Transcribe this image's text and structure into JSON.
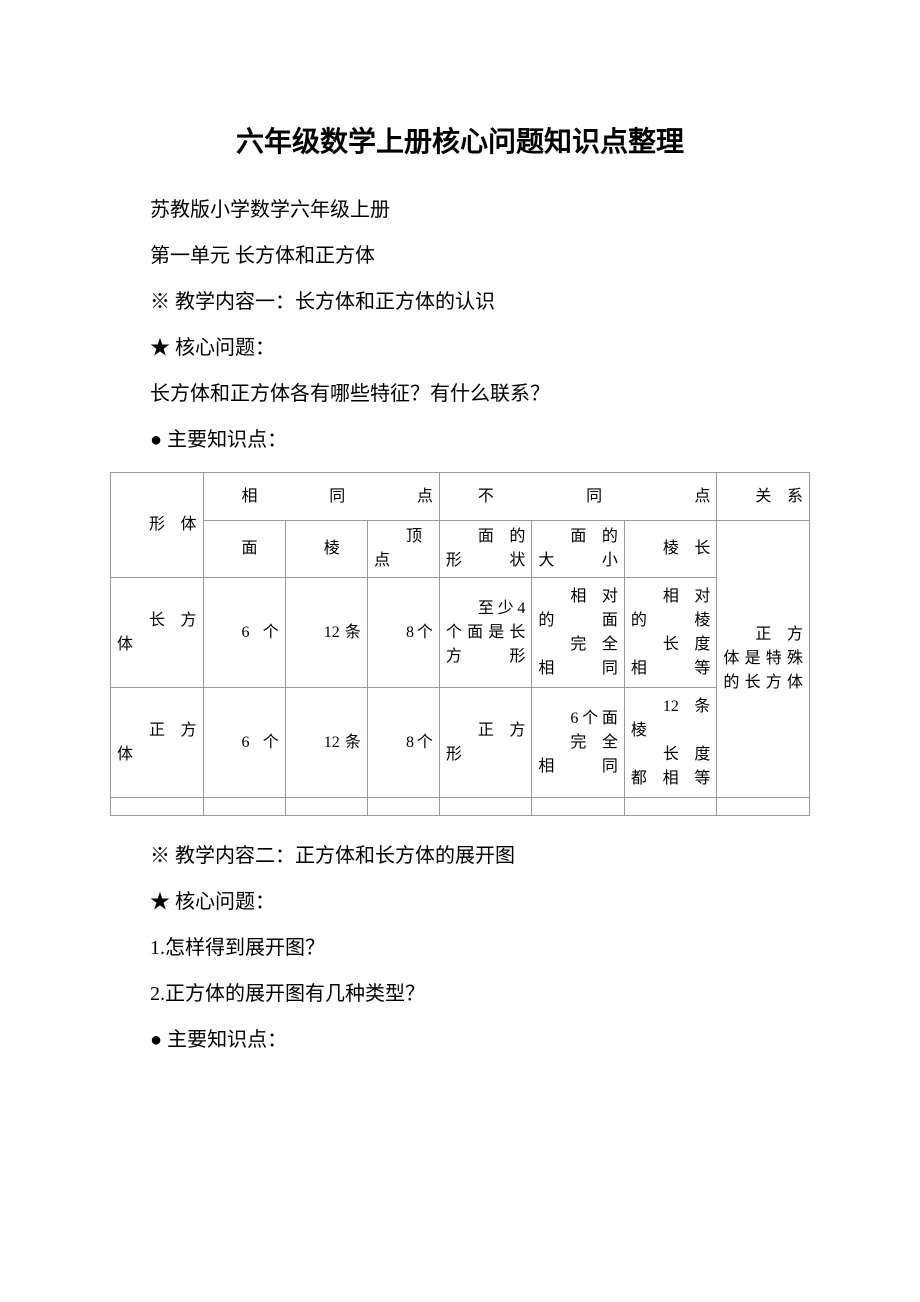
{
  "title": "六年级数学上册核心问题知识点整理",
  "intro1": "苏教版小学数学六年级上册",
  "intro2": "第一单元 长方体和正方体",
  "content1_label": "※ 教学内容一：长方体和正方体的认识",
  "core_label": "★ 核心问题：",
  "core_q1": "长方体和正方体各有哪些特征？有什么联系？",
  "kp_label": "● 主要知识点：",
  "table": {
    "header": {
      "shape": "形体",
      "same": "相同点",
      "diff": "不同点",
      "relation": "关系"
    },
    "subheader": {
      "face": "面",
      "edge": "棱",
      "vertex": "顶点",
      "faceShape": "面的形状",
      "faceSize": "面的大小",
      "edgeLen": "棱长"
    },
    "row1": {
      "shape": "长方体",
      "face": "6个",
      "edge": "12条",
      "vertex": "8个",
      "faceShape": "至少4个面是长方形",
      "faceSize1": "相对的面",
      "faceSize2": "完全相同",
      "edgeLen1": "相对的棱",
      "edgeLen2": "长度相等"
    },
    "row2": {
      "shape": "正方体",
      "face": "6个",
      "edge": "12条",
      "vertex": "8个",
      "faceShape": "正方形",
      "faceSize1": "6个面",
      "faceSize2": "完全相同",
      "edgeLen1": "12条棱",
      "edgeLen2": "长度都相等"
    },
    "relation": "正方体是特殊的长方体"
  },
  "content2_label": "※ 教学内容二：正方体和长方体的展开图",
  "core_label2": "★ 核心问题：",
  "q2_1": "1.怎样得到展开图？",
  "q2_2": "2.正方体的展开图有几种类型？",
  "kp_label2": "● 主要知识点："
}
